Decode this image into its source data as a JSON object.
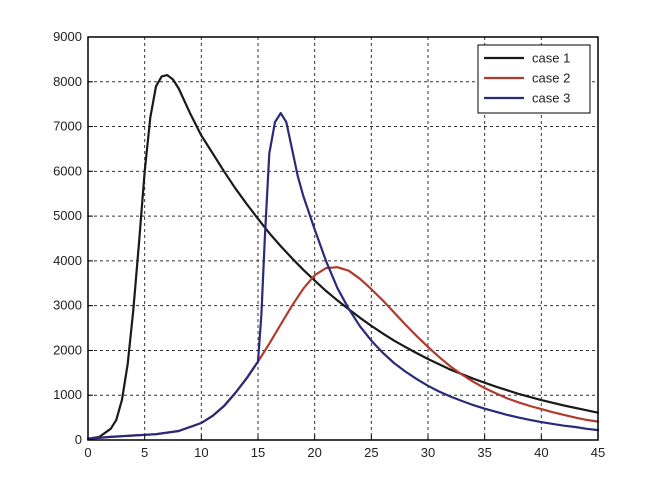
{
  "chart_data": {
    "type": "line",
    "title": "",
    "xlabel": "",
    "ylabel": "",
    "xlim": [
      0,
      45
    ],
    "ylim": [
      0,
      9000
    ],
    "xticks": [
      0,
      5,
      10,
      15,
      20,
      25,
      30,
      35,
      40,
      45
    ],
    "yticks": [
      0,
      1000,
      2000,
      3000,
      4000,
      5000,
      6000,
      7000,
      8000,
      9000
    ],
    "grid": true,
    "legend_position": "top-right",
    "series": [
      {
        "name": "case 1",
        "color": "#1a1a1a",
        "x": [
          0,
          1,
          2,
          2.5,
          3,
          3.5,
          4,
          4.5,
          5,
          5.5,
          6,
          6.5,
          7,
          7.5,
          8,
          9,
          10,
          11,
          12,
          13,
          14,
          15,
          16,
          17,
          18,
          19,
          20,
          21,
          22,
          23,
          24,
          25,
          26,
          27,
          28,
          29,
          30,
          32,
          34,
          36,
          38,
          40,
          42,
          45
        ],
        "y": [
          30,
          70,
          250,
          450,
          900,
          1700,
          2900,
          4400,
          6000,
          7200,
          7900,
          8120,
          8150,
          8050,
          7850,
          7300,
          6800,
          6400,
          6000,
          5620,
          5270,
          4940,
          4620,
          4330,
          4060,
          3800,
          3560,
          3330,
          3120,
          2920,
          2730,
          2550,
          2380,
          2220,
          2080,
          1940,
          1810,
          1570,
          1370,
          1190,
          1030,
          890,
          770,
          610
        ]
      },
      {
        "name": "case 2",
        "color": "#b03a2e",
        "x": [
          0,
          2,
          4,
          6,
          8,
          10,
          11,
          12,
          13,
          14,
          15,
          16,
          17,
          18,
          19,
          20,
          21,
          22,
          23,
          24,
          25,
          26,
          27,
          28,
          29,
          30,
          31,
          32,
          33,
          34,
          35,
          36,
          37,
          38,
          39,
          40,
          41,
          42,
          43,
          44,
          45
        ],
        "y": [
          30,
          70,
          100,
          130,
          200,
          380,
          540,
          760,
          1050,
          1380,
          1750,
          2150,
          2580,
          3000,
          3380,
          3680,
          3840,
          3860,
          3780,
          3600,
          3370,
          3120,
          2850,
          2580,
          2320,
          2080,
          1850,
          1640,
          1460,
          1300,
          1160,
          1040,
          930,
          840,
          760,
          690,
          620,
          560,
          500,
          450,
          410
        ]
      },
      {
        "name": "case 3",
        "color": "#2a2a7a",
        "x": [
          0,
          2,
          4,
          6,
          8,
          10,
          11,
          12,
          13,
          14,
          15,
          15.3,
          15.6,
          16,
          16.5,
          17,
          17.5,
          18,
          18.5,
          19,
          20,
          21,
          22,
          23,
          24,
          25,
          26,
          27,
          28,
          29,
          30,
          31,
          32,
          33,
          34,
          35,
          36,
          37,
          38,
          39,
          40,
          41,
          42,
          43,
          44,
          45
        ],
        "y": [
          30,
          70,
          100,
          130,
          200,
          380,
          540,
          760,
          1050,
          1380,
          1750,
          2800,
          4500,
          6400,
          7100,
          7300,
          7100,
          6500,
          5900,
          5450,
          4700,
          4000,
          3400,
          2930,
          2540,
          2220,
          1950,
          1720,
          1530,
          1360,
          1210,
          1080,
          970,
          870,
          780,
          700,
          630,
          560,
          500,
          450,
          400,
          360,
          320,
          290,
          250,
          220
        ]
      }
    ]
  }
}
